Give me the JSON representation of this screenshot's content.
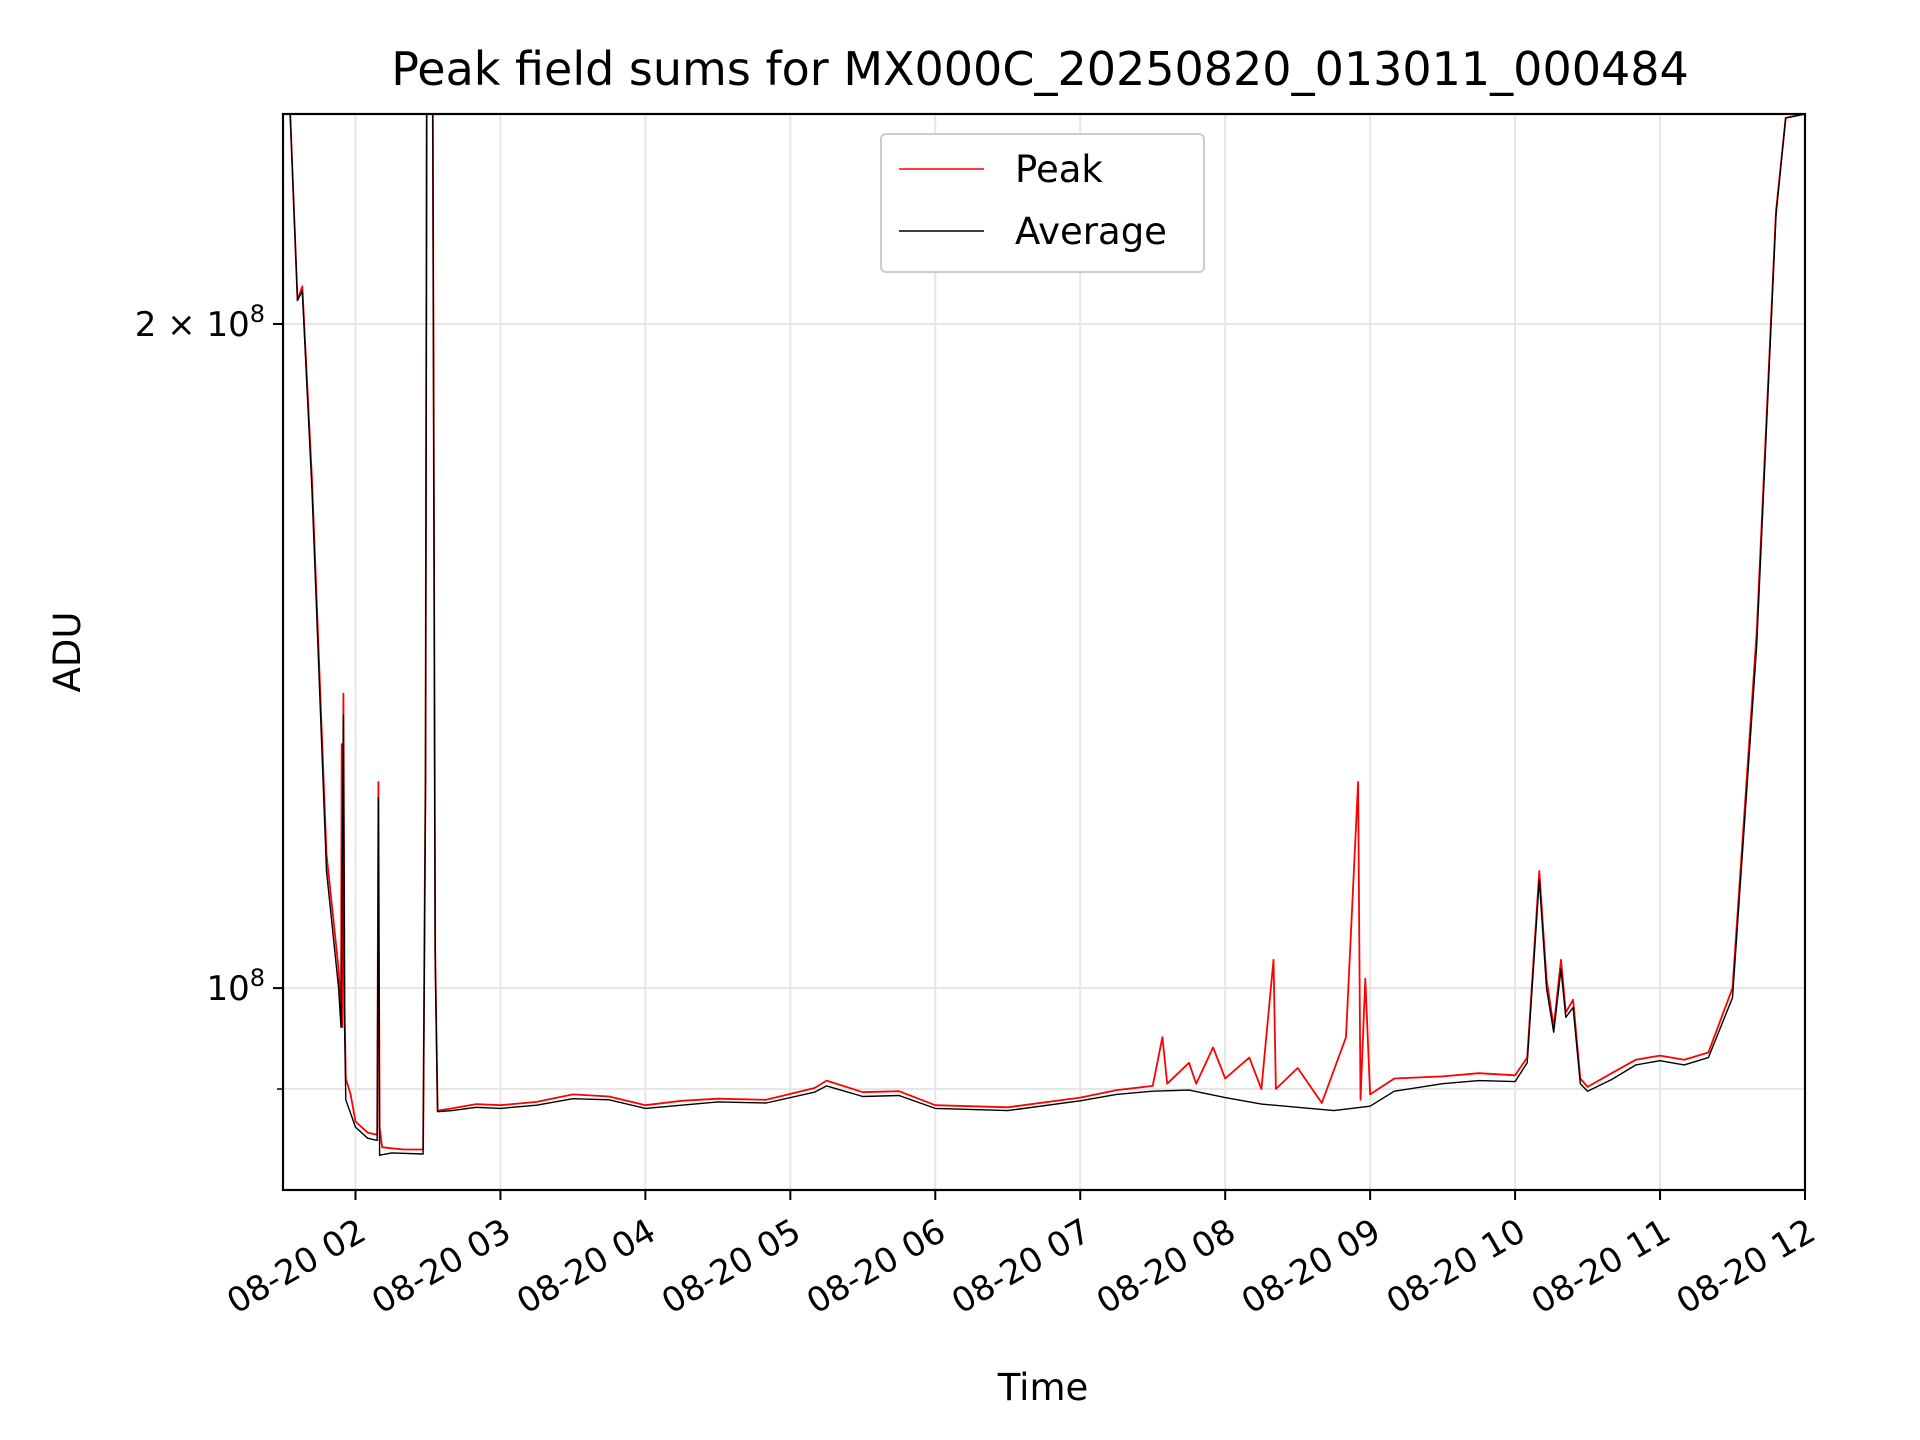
{
  "chart_data": {
    "type": "line",
    "title": "Peak field sums for MX000C_20250820_013011_000484",
    "xlabel": "Time",
    "ylabel": "ADU",
    "yscale": "log",
    "ylim": [
      81000000,
      249000000
    ],
    "xlim": [
      "08-20 01:30",
      "08-20 12:00"
    ],
    "x_ticks": [
      "08-20 02",
      "08-20 03",
      "08-20 04",
      "08-20 05",
      "08-20 06",
      "08-20 07",
      "08-20 08",
      "08-20 09",
      "08-20 10",
      "08-20 11",
      "08-20 12"
    ],
    "y_ticks_major": [
      {
        "value": 100000000,
        "base": "10",
        "exp": "8",
        "coef": ""
      },
      {
        "value": 200000000,
        "base": "10",
        "exp": "8",
        "coef": "2"
      }
    ],
    "y_ticks_minor": [
      90000000
    ],
    "grid": true,
    "legend_position": "top-center",
    "series": [
      {
        "name": "Peak",
        "color": "#ff0000",
        "points": [
          [
            "08-20 01:30",
            249000000
          ],
          [
            "08-20 01:33",
            249000000
          ],
          [
            "08-20 01:36",
            205000000
          ],
          [
            "08-20 01:38",
            208000000
          ],
          [
            "08-20 01:42",
            170000000
          ],
          [
            "08-20 01:48",
            115000000
          ],
          [
            "08-20 01:53",
            102000000
          ],
          [
            "08-20 01:54",
            97000000
          ],
          [
            "08-20 01:54.3",
            129000000
          ],
          [
            "08-20 01:54.6",
            96000000
          ],
          [
            "08-20 01:55",
            136000000
          ],
          [
            "08-20 01:55.5",
            98000000
          ],
          [
            "08-20 01:56",
            91000000
          ],
          [
            "08-20 01:58",
            89500000
          ],
          [
            "08-20 02:00",
            87000000
          ],
          [
            "08-20 02:05",
            86000000
          ],
          [
            "08-20 02:09",
            85800000
          ],
          [
            "08-20 02:09.5",
            124000000
          ],
          [
            "08-20 02:10",
            86500000
          ],
          [
            "08-20 02:11",
            84700000
          ],
          [
            "08-20 02:15",
            84600000
          ],
          [
            "08-20 02:20",
            84500000
          ],
          [
            "08-20 02:28",
            84500000
          ],
          [
            "08-20 02:29",
            125000000
          ],
          [
            "08-20 02:29.5",
            250000000
          ],
          [
            "08-20 02:32",
            250000000
          ],
          [
            "08-20 02:33",
            104000000
          ],
          [
            "08-20 02:34",
            88000000
          ],
          [
            "08-20 02:40",
            88200000
          ],
          [
            "08-20 02:50",
            88600000
          ],
          [
            "08-20 03:00",
            88500000
          ],
          [
            "08-20 03:15",
            88800000
          ],
          [
            "08-20 03:30",
            89500000
          ],
          [
            "08-20 03:45",
            89300000
          ],
          [
            "08-20 04:00",
            88500000
          ],
          [
            "08-20 04:15",
            88900000
          ],
          [
            "08-20 04:30",
            89100000
          ],
          [
            "08-20 04:50",
            89000000
          ],
          [
            "08-20 05:10",
            90100000
          ],
          [
            "08-20 05:15",
            90800000
          ],
          [
            "08-20 05:30",
            89700000
          ],
          [
            "08-20 05:45",
            89800000
          ],
          [
            "08-20 06:00",
            88500000
          ],
          [
            "08-20 06:30",
            88300000
          ],
          [
            "08-20 07:00",
            89200000
          ],
          [
            "08-20 07:15",
            89900000
          ],
          [
            "08-20 07:30",
            90300000
          ],
          [
            "08-20 07:34",
            95000000
          ],
          [
            "08-20 07:36",
            90500000
          ],
          [
            "08-20 07:45",
            92500000
          ],
          [
            "08-20 07:48",
            90500000
          ],
          [
            "08-20 07:55",
            94000000
          ],
          [
            "08-20 08:00",
            91000000
          ],
          [
            "08-20 08:10",
            93000000
          ],
          [
            "08-20 08:15",
            90000000
          ],
          [
            "08-20 08:20",
            103000000
          ],
          [
            "08-20 08:21",
            90000000
          ],
          [
            "08-20 08:30",
            92000000
          ],
          [
            "08-20 08:40",
            88700000
          ],
          [
            "08-20 08:50",
            95000000
          ],
          [
            "08-20 08:55",
            124000000
          ],
          [
            "08-20 08:56",
            89000000
          ],
          [
            "08-20 08:58",
            101000000
          ],
          [
            "08-20 09:00",
            89500000
          ],
          [
            "08-20 09:10",
            91000000
          ],
          [
            "08-20 09:30",
            91200000
          ],
          [
            "08-20 09:45",
            91500000
          ],
          [
            "08-20 10:00",
            91300000
          ],
          [
            "08-20 10:05",
            93000000
          ],
          [
            "08-20 10:10",
            113000000
          ],
          [
            "08-20 10:13",
            101000000
          ],
          [
            "08-20 10:16",
            96000000
          ],
          [
            "08-20 10:19",
            103000000
          ],
          [
            "08-20 10:21",
            97500000
          ],
          [
            "08-20 10:24",
            98800000
          ],
          [
            "08-20 10:27",
            91000000
          ],
          [
            "08-20 10:30",
            90200000
          ],
          [
            "08-20 10:40",
            91500000
          ],
          [
            "08-20 10:50",
            92800000
          ],
          [
            "08-20 11:00",
            93200000
          ],
          [
            "08-20 11:10",
            92800000
          ],
          [
            "08-20 11:20",
            93500000
          ],
          [
            "08-20 11:30",
            100000000
          ],
          [
            "08-20 11:40",
            145000000
          ],
          [
            "08-20 11:48",
            225000000
          ],
          [
            "08-20 11:52",
            248000000
          ],
          [
            "08-20 12:00",
            249000000
          ]
        ]
      },
      {
        "name": "Average",
        "color": "#000000",
        "points": [
          [
            "08-20 01:30",
            249000000
          ],
          [
            "08-20 01:33",
            249000000
          ],
          [
            "08-20 01:36",
            205000000
          ],
          [
            "08-20 01:38",
            207000000
          ],
          [
            "08-20 01:42",
            168000000
          ],
          [
            "08-20 01:48",
            113000000
          ],
          [
            "08-20 01:53",
            100000000
          ],
          [
            "08-20 01:54",
            96000000
          ],
          [
            "08-20 01:55",
            133000000
          ],
          [
            "08-20 01:55.5",
            96000000
          ],
          [
            "08-20 01:56",
            89000000
          ],
          [
            "08-20 02:00",
            86500000
          ],
          [
            "08-20 02:05",
            85500000
          ],
          [
            "08-20 02:09",
            85300000
          ],
          [
            "08-20 02:09.5",
            122000000
          ],
          [
            "08-20 02:10",
            84000000
          ],
          [
            "08-20 02:15",
            84200000
          ],
          [
            "08-20 02:28",
            84100000
          ],
          [
            "08-20 02:29",
            123000000
          ],
          [
            "08-20 02:29.5",
            250000000
          ],
          [
            "08-20 02:32",
            250000000
          ],
          [
            "08-20 02:33",
            103000000
          ],
          [
            "08-20 02:34",
            87900000
          ],
          [
            "08-20 02:40",
            88000000
          ],
          [
            "08-20 02:50",
            88300000
          ],
          [
            "08-20 03:00",
            88200000
          ],
          [
            "08-20 03:15",
            88500000
          ],
          [
            "08-20 03:30",
            89100000
          ],
          [
            "08-20 03:45",
            89000000
          ],
          [
            "08-20 04:00",
            88200000
          ],
          [
            "08-20 04:15",
            88500000
          ],
          [
            "08-20 04:30",
            88800000
          ],
          [
            "08-20 04:50",
            88700000
          ],
          [
            "08-20 05:10",
            89700000
          ],
          [
            "08-20 05:15",
            90300000
          ],
          [
            "08-20 05:30",
            89300000
          ],
          [
            "08-20 05:45",
            89400000
          ],
          [
            "08-20 06:00",
            88200000
          ],
          [
            "08-20 06:30",
            88000000
          ],
          [
            "08-20 07:00",
            88900000
          ],
          [
            "08-20 07:15",
            89500000
          ],
          [
            "08-20 07:30",
            89800000
          ],
          [
            "08-20 07:45",
            89900000
          ],
          [
            "08-20 08:00",
            89200000
          ],
          [
            "08-20 08:15",
            88600000
          ],
          [
            "08-20 08:30",
            88300000
          ],
          [
            "08-20 08:45",
            88000000
          ],
          [
            "08-20 09:00",
            88400000
          ],
          [
            "08-20 09:10",
            89800000
          ],
          [
            "08-20 09:30",
            90500000
          ],
          [
            "08-20 09:45",
            90800000
          ],
          [
            "08-20 10:00",
            90700000
          ],
          [
            "08-20 10:05",
            92500000
          ],
          [
            "08-20 10:10",
            112000000
          ],
          [
            "08-20 10:13",
            100000000
          ],
          [
            "08-20 10:16",
            95500000
          ],
          [
            "08-20 10:19",
            102000000
          ],
          [
            "08-20 10:21",
            97000000
          ],
          [
            "08-20 10:24",
            98000000
          ],
          [
            "08-20 10:27",
            90500000
          ],
          [
            "08-20 10:30",
            89800000
          ],
          [
            "08-20 10:40",
            90900000
          ],
          [
            "08-20 10:50",
            92300000
          ],
          [
            "08-20 11:00",
            92700000
          ],
          [
            "08-20 11:10",
            92300000
          ],
          [
            "08-20 11:20",
            93000000
          ],
          [
            "08-20 11:30",
            99000000
          ],
          [
            "08-20 11:40",
            143000000
          ],
          [
            "08-20 11:48",
            224000000
          ],
          [
            "08-20 11:52",
            248000000
          ],
          [
            "08-20 12:00",
            249000000
          ]
        ]
      }
    ]
  }
}
